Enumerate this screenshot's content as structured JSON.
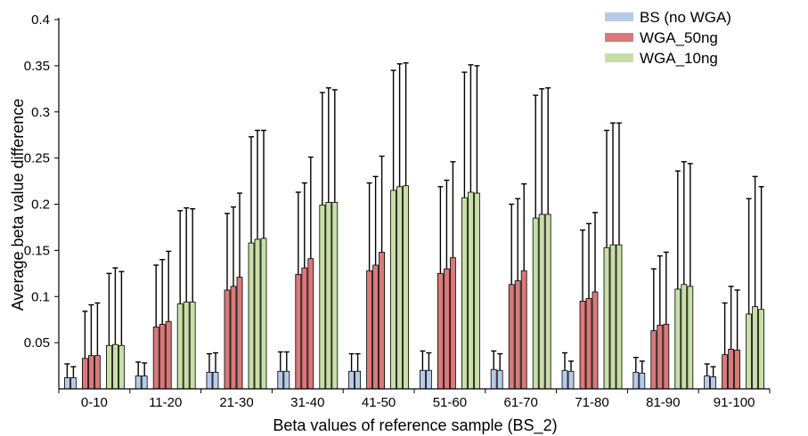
{
  "chart_data": {
    "type": "bar",
    "title": "",
    "xlabel": "Beta values of reference sample (BS_2)",
    "ylabel": "Average beta value difference",
    "ylim": [
      0,
      0.4
    ],
    "yticks": [
      0.05,
      0.1,
      0.15,
      0.2,
      0.25,
      0.3,
      0.35,
      0.4
    ],
    "ytick_labels": [
      "0.05",
      "0.1",
      "0.15",
      "0.2",
      "0.25",
      "0.3",
      "0.35",
      "0.4"
    ],
    "categories": [
      "0-10",
      "11-20",
      "21-30",
      "31-40",
      "41-50",
      "51-60",
      "61-70",
      "71-80",
      "81-90",
      "91-100"
    ],
    "legend_position": "top-right",
    "error_bars": "upper only",
    "series": [
      {
        "name": "BS (no WGA)",
        "color": "#b7cbe9",
        "bars_per_group": 2,
        "values": [
          [
            0.012,
            0.012
          ],
          [
            0.014,
            0.014
          ],
          [
            0.018,
            0.018
          ],
          [
            0.019,
            0.019
          ],
          [
            0.019,
            0.019
          ],
          [
            0.02,
            0.02
          ],
          [
            0.021,
            0.02
          ],
          [
            0.02,
            0.019
          ],
          [
            0.018,
            0.017
          ],
          [
            0.014,
            0.013
          ]
        ],
        "error": [
          [
            0.015,
            0.012
          ],
          [
            0.015,
            0.014
          ],
          [
            0.02,
            0.021
          ],
          [
            0.021,
            0.021
          ],
          [
            0.019,
            0.019
          ],
          [
            0.021,
            0.019
          ],
          [
            0.02,
            0.018
          ],
          [
            0.019,
            0.011
          ],
          [
            0.016,
            0.013
          ],
          [
            0.013,
            0.011
          ]
        ]
      },
      {
        "name": "WGA_50ng",
        "color": "#d9797a",
        "bars_per_group": 3,
        "values": [
          [
            0.033,
            0.036,
            0.036
          ],
          [
            0.067,
            0.07,
            0.073
          ],
          [
            0.107,
            0.111,
            0.121
          ],
          [
            0.124,
            0.131,
            0.141
          ],
          [
            0.128,
            0.134,
            0.148
          ],
          [
            0.125,
            0.13,
            0.142
          ],
          [
            0.113,
            0.117,
            0.128
          ],
          [
            0.095,
            0.098,
            0.105
          ],
          [
            0.063,
            0.069,
            0.07
          ],
          [
            0.037,
            0.043,
            0.042
          ]
        ],
        "error": [
          [
            0.051,
            0.055,
            0.057
          ],
          [
            0.067,
            0.07,
            0.076
          ],
          [
            0.083,
            0.086,
            0.091
          ],
          [
            0.089,
            0.092,
            0.11
          ],
          [
            0.095,
            0.096,
            0.104
          ],
          [
            0.094,
            0.096,
            0.104
          ],
          [
            0.087,
            0.089,
            0.094
          ],
          [
            0.077,
            0.081,
            0.086
          ],
          [
            0.067,
            0.075,
            0.078
          ],
          [
            0.056,
            0.068,
            0.065
          ]
        ]
      },
      {
        "name": "WGA_10ng",
        "color": "#c9dfa6",
        "bars_per_group": 3,
        "values": [
          [
            0.047,
            0.048,
            0.047
          ],
          [
            0.092,
            0.094,
            0.094
          ],
          [
            0.158,
            0.162,
            0.163
          ],
          [
            0.199,
            0.202,
            0.202
          ],
          [
            0.215,
            0.219,
            0.22
          ],
          [
            0.207,
            0.213,
            0.212
          ],
          [
            0.185,
            0.189,
            0.189
          ],
          [
            0.153,
            0.156,
            0.156
          ],
          [
            0.108,
            0.113,
            0.111
          ],
          [
            0.081,
            0.089,
            0.086
          ]
        ],
        "error": [
          [
            0.078,
            0.083,
            0.08
          ],
          [
            0.101,
            0.102,
            0.101
          ],
          [
            0.115,
            0.118,
            0.117
          ],
          [
            0.122,
            0.124,
            0.122
          ],
          [
            0.13,
            0.133,
            0.133
          ],
          [
            0.136,
            0.138,
            0.138
          ],
          [
            0.133,
            0.136,
            0.137
          ],
          [
            0.127,
            0.132,
            0.132
          ],
          [
            0.128,
            0.133,
            0.133
          ],
          [
            0.125,
            0.141,
            0.133
          ]
        ]
      }
    ]
  }
}
